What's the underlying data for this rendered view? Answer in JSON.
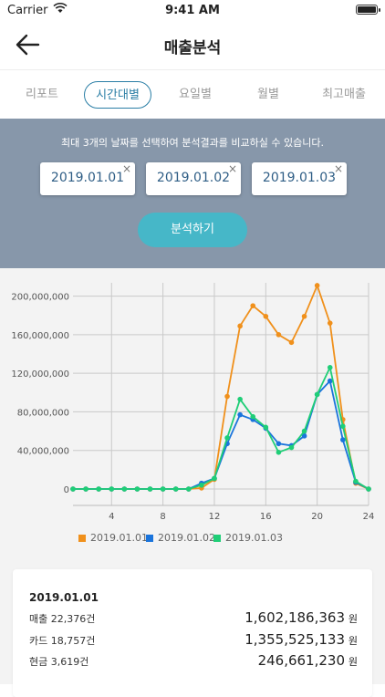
{
  "status_bar": {
    "carrier": "Carrier",
    "time": "9:41 AM"
  },
  "nav": {
    "title": "매출분석"
  },
  "tabs": [
    {
      "label": "리포트",
      "active": false
    },
    {
      "label": "시간대별",
      "active": true
    },
    {
      "label": "요일별",
      "active": false
    },
    {
      "label": "월별",
      "active": false
    },
    {
      "label": "최고매출",
      "active": false
    }
  ],
  "compare": {
    "hint": "최대 3개의 날짜를 선택하여 분석결과를 비교하실 수 있습니다.",
    "dates": [
      "2019.01.01",
      "2019.01.02",
      "2019.01.03"
    ],
    "remove_glyph": "×",
    "analyze_label": "분석하기"
  },
  "chart_data": {
    "type": "line",
    "x": [
      1,
      2,
      3,
      4,
      5,
      6,
      7,
      8,
      9,
      10,
      11,
      12,
      13,
      14,
      15,
      16,
      17,
      18,
      19,
      20,
      21,
      22,
      23,
      24
    ],
    "xticks": [
      "4",
      "8",
      "12",
      "16",
      "20",
      "24"
    ],
    "ylim": [
      0,
      210000000
    ],
    "yticks": [
      "0",
      "40,000,000",
      "80,000,000",
      "120,000,000",
      "160,000,000",
      "200,000,000"
    ],
    "series": [
      {
        "name": "2019.01.01",
        "color": "#f0901b",
        "values": [
          0,
          0,
          0,
          0,
          0,
          0,
          0,
          0,
          0,
          0,
          1000000,
          10000000,
          96000000,
          169000000,
          190000000,
          179000000,
          160000000,
          152000000,
          179000000,
          211000000,
          172000000,
          72000000,
          6000000,
          0
        ]
      },
      {
        "name": "2019.01.02",
        "color": "#1a74dc",
        "values": [
          0,
          0,
          0,
          0,
          0,
          0,
          0,
          0,
          0,
          0,
          6000000,
          11000000,
          47000000,
          77000000,
          72000000,
          63000000,
          47000000,
          45000000,
          55000000,
          98000000,
          112000000,
          51000000,
          7000000,
          0
        ]
      },
      {
        "name": "2019.01.03",
        "color": "#1fce77",
        "values": [
          0,
          0,
          0,
          0,
          0,
          0,
          0,
          0,
          0,
          0,
          4000000,
          11000000,
          53000000,
          93000000,
          75000000,
          64000000,
          38000000,
          43000000,
          60000000,
          98000000,
          126000000,
          65000000,
          8000000,
          0
        ]
      }
    ]
  },
  "summary": {
    "date": "2019.01.01",
    "rows": [
      {
        "label": "매출 22,376건",
        "amount": "1,602,186,363",
        "unit": "원"
      },
      {
        "label": "카드 18,757건",
        "amount": "1,355,525,133",
        "unit": "원"
      },
      {
        "label": "현금 3,619건",
        "amount": "246,661,230",
        "unit": "원"
      }
    ]
  }
}
